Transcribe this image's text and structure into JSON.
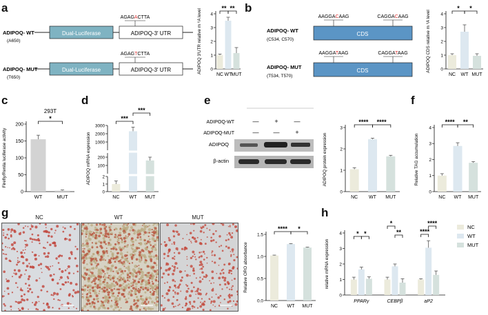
{
  "panels": {
    "a": "a",
    "b": "b",
    "c": "c",
    "d": "d",
    "e": "e",
    "f": "f",
    "g": "g",
    "h": "h"
  },
  "colors": {
    "nc": "#ecebdc",
    "wt": "#dde8f0",
    "mut": "#d5e1dd",
    "luc": "#7fb3c2",
    "cds": "#5b95c5",
    "grey": "#d3d3d3"
  },
  "a": {
    "wt_label": "ADIPOQ- WT",
    "wt_sub": "(A650)",
    "mut_label": "ADIPOQ- MUT",
    "mut_sub": "(T650)",
    "box1": "Dual-Luciferase",
    "box2": "ADIPOQ-3′ UTR",
    "seq_wt_pre": "AGAG",
    "seq_wt_mod": "A",
    "seq_wt_post": "CTTA",
    "seq_mut_pre": "AGAG",
    "seq_mut_mod": "T",
    "seq_mut_post": "CTTA"
  },
  "b": {
    "wt_label": "ADIPOQ- WT",
    "wt_sub": "(C534, C570)",
    "mut_label": "ADIPOQ- MUT",
    "mut_sub": "(T534, T570)",
    "box": "CDS",
    "s1_wt_pre": "AAGGA",
    "s1_wt_mod": "C",
    "s1_wt_post": "AAG",
    "s2_wt_pre": "CAGGA",
    "s2_wt_mod": "C",
    "s2_wt_post": "AAG",
    "s1_mut_pre": "AAGGA",
    "s1_mut_mod": "T",
    "s1_mut_post": "AAG",
    "s2_mut_pre": "CAGGA",
    "s2_mut_mod": "T",
    "s2_mut_post": "AAG"
  },
  "e_blot": {
    "row1": "ADIPOQ-WT",
    "row2": "ADIPOQ-MUT",
    "signs1": [
      "—",
      "+",
      "—"
    ],
    "signs2": [
      "—",
      "—",
      "+"
    ],
    "band1": "ADIPOQ",
    "band2": "β-actin"
  },
  "g_images": {
    "titles": [
      "NC",
      "WT",
      "MUT"
    ]
  },
  "chart_data": [
    {
      "id": "a",
      "type": "bar",
      "categories": [
        "NC",
        "WT",
        "MUT"
      ],
      "values": [
        1.0,
        3.5,
        1.15
      ],
      "errors": [
        0.08,
        0.25,
        0.4
      ],
      "ylabel": "ADIPOQ 3′UTR relative m ⁶A level",
      "ylim": [
        0,
        4
      ],
      "yticks": [
        0,
        1,
        2,
        3,
        4
      ],
      "sig": [
        {
          "from": 0,
          "to": 1,
          "label": "**"
        },
        {
          "from": 1,
          "to": 2,
          "label": "**"
        }
      ]
    },
    {
      "id": "b",
      "type": "bar",
      "categories": [
        "NC",
        "WT",
        "MUT"
      ],
      "values": [
        1.0,
        2.7,
        0.95
      ],
      "errors": [
        0.1,
        0.5,
        0.15
      ],
      "ylabel": "ADIPOQ CDS relative m ⁶A level",
      "ylim": [
        0,
        4
      ],
      "yticks": [
        0,
        1,
        2,
        3,
        4
      ],
      "sig": [
        {
          "from": 0,
          "to": 1,
          "label": "*"
        },
        {
          "from": 1,
          "to": 2,
          "label": "*"
        }
      ]
    },
    {
      "id": "c",
      "type": "bar",
      "categories": [
        "WT",
        "MUT"
      ],
      "values": [
        155,
        3
      ],
      "errors": [
        12,
        2
      ],
      "title": "293T",
      "ylabel": "Firefly/Renila luciferase activity",
      "ylim": [
        0,
        200
      ],
      "yticks": [
        0,
        50,
        100,
        150,
        200
      ],
      "sig": [
        {
          "from": 0,
          "to": 1,
          "label": "*"
        }
      ]
    },
    {
      "id": "d",
      "type": "bar",
      "categories": [
        "NC",
        "WT",
        "MUT"
      ],
      "values": [
        1,
        2300,
        160
      ],
      "errors": [
        0.4,
        500,
        40
      ],
      "ylabel": "ADIPOQ mRNA expression",
      "axis_breaks": true,
      "ytick_labels": [
        "0",
        "1",
        "2",
        "100",
        "200",
        "1000",
        "2000",
        "3000"
      ],
      "sig": [
        {
          "from": 0,
          "to": 1,
          "label": "***"
        },
        {
          "from": 1,
          "to": 2,
          "label": "***"
        }
      ]
    },
    {
      "id": "e",
      "type": "bar",
      "categories": [
        "NC",
        "WT",
        "MUT"
      ],
      "values": [
        1.05,
        2.45,
        1.65
      ],
      "errors": [
        0.07,
        0.05,
        0.05
      ],
      "ylabel": "ADIPOQ protein expression",
      "ylim": [
        0,
        3
      ],
      "yticks": [
        0,
        1,
        2,
        3
      ],
      "sig": [
        {
          "from": 0,
          "to": 1,
          "label": "****"
        },
        {
          "from": 1,
          "to": 2,
          "label": "****"
        }
      ]
    },
    {
      "id": "f",
      "type": "bar",
      "categories": [
        "NC",
        "WT",
        "MUT"
      ],
      "values": [
        1.0,
        2.85,
        1.8
      ],
      "errors": [
        0.12,
        0.2,
        0.07
      ],
      "ylabel": "Relative TAG accumulation",
      "ylim": [
        0,
        4
      ],
      "yticks": [
        0,
        1,
        2,
        3,
        4
      ],
      "sig": [
        {
          "from": 0,
          "to": 1,
          "label": "****"
        },
        {
          "from": 1,
          "to": 2,
          "label": "**"
        }
      ]
    },
    {
      "id": "g",
      "type": "bar",
      "categories": [
        "NC",
        "WT",
        "MUT"
      ],
      "values": [
        1.02,
        1.28,
        1.2
      ],
      "errors": [
        0.01,
        0.01,
        0.01
      ],
      "ylabel": "Relative ORO absorbance",
      "ylim": [
        0,
        1.5
      ],
      "yticks": [
        0.0,
        0.5,
        1.0,
        1.5
      ],
      "ytick_labels": [
        "0.0",
        "0.5",
        "1.0",
        "1.5"
      ],
      "sig": [
        {
          "from": 0,
          "to": 1,
          "label": "****"
        },
        {
          "from": 1,
          "to": 2,
          "label": "*"
        }
      ]
    },
    {
      "id": "h",
      "type": "bar",
      "categories": [
        "PPARγ",
        "CEBPβ",
        "aP2"
      ],
      "series": [
        {
          "name": "NC",
          "values": [
            1.0,
            1.0,
            1.0
          ],
          "errors": [
            0.15,
            0.15,
            0.05
          ]
        },
        {
          "name": "WT",
          "values": [
            1.65,
            1.85,
            3.05
          ],
          "errors": [
            0.15,
            0.15,
            0.45
          ]
        },
        {
          "name": "MUT",
          "values": [
            1.05,
            0.8,
            1.3
          ],
          "errors": [
            0.12,
            0.25,
            0.25
          ]
        }
      ],
      "ylabel": "relative mRNA expression",
      "ylim": [
        0,
        4
      ],
      "yticks": [
        0,
        1,
        2,
        3,
        4
      ],
      "sig": [
        {
          "group": 0,
          "from": 0,
          "to": 1,
          "label": "*"
        },
        {
          "group": 0,
          "from": 1,
          "to": 2,
          "label": "*"
        },
        {
          "group": 1,
          "from": 0,
          "to": 1,
          "label": "*"
        },
        {
          "group": 1,
          "from": 1,
          "to": 2,
          "label": "**"
        },
        {
          "group": 2,
          "from": 0,
          "to": 1,
          "label": "****"
        },
        {
          "group": 2,
          "from": 1,
          "to": 2,
          "label": "****"
        }
      ],
      "legend": "right"
    }
  ]
}
